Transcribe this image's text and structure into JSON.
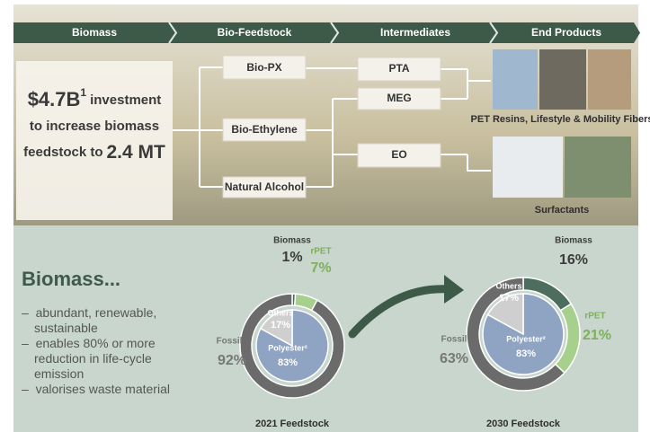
{
  "header": {
    "stages": [
      "Biomass",
      "Bio-Feedstock",
      "Intermediates",
      "End Products"
    ]
  },
  "investment": {
    "amount": "$4.7B",
    "superscript": "1",
    "line1": "investment",
    "line2": "to increase biomass",
    "line3": "feedstock to",
    "target": "2.4 MT"
  },
  "nodes": {
    "feedstock": [
      "Bio-PX",
      "Bio-Ethylene",
      "Natural Alcohol"
    ],
    "intermediates": [
      "PTA",
      "MEG",
      "EO"
    ]
  },
  "end_products": [
    "PET Resins, Lifestyle & Mobility Fibers",
    "Surfactants"
  ],
  "biomass_section": {
    "title": "Biomass...",
    "bullets": [
      "abundant, renewable, sustainable",
      "enables 80% or more reduction in life-cycle emission",
      "valorises waste material"
    ]
  },
  "charts": [
    {
      "type": "donut",
      "title": "2021 Feedstock",
      "outer": {
        "names": [
          "Biomass",
          "rPET",
          "Fossil"
        ],
        "values": [
          1,
          7,
          92
        ],
        "value_labels": [
          "1%",
          "7%",
          "92%"
        ],
        "colors": [
          "#4d6e5e",
          "#a8d08d",
          "#6b6b6b"
        ]
      },
      "inner": {
        "names": [
          "Polyester²",
          "Others"
        ],
        "values": [
          83,
          17
        ],
        "value_labels": [
          "83%",
          "17%"
        ],
        "colors": [
          "#8fa3c3",
          "#cfcfcf"
        ]
      }
    },
    {
      "type": "donut",
      "title": "2030 Feedstock",
      "outer": {
        "names": [
          "Biomass",
          "rPET",
          "Fossil"
        ],
        "values": [
          16,
          21,
          63
        ],
        "value_labels": [
          "16%",
          "21%",
          "63%"
        ],
        "colors": [
          "#4d6e5e",
          "#a8d08d",
          "#6b6b6b"
        ]
      },
      "inner": {
        "names": [
          "Polyester²",
          "Others"
        ],
        "values": [
          83,
          17
        ],
        "value_labels": [
          "83%",
          "17%"
        ],
        "colors": [
          "#8fa3c3",
          "#cfcfcf"
        ]
      }
    }
  ]
}
